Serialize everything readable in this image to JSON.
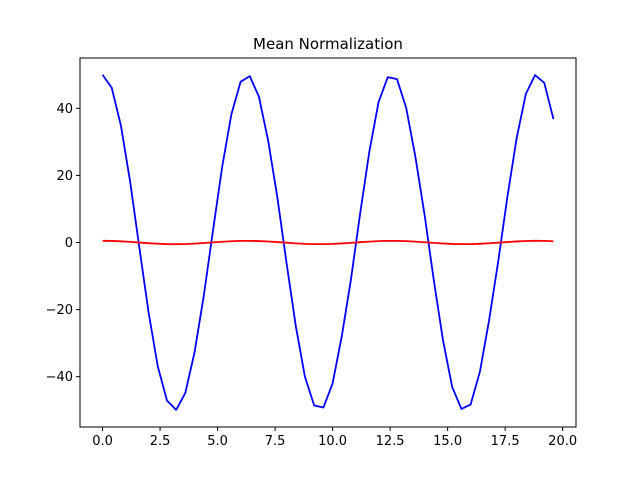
{
  "chart_data": {
    "type": "line",
    "title": "Mean Normalization",
    "xlabel": "",
    "ylabel": "",
    "xlim": [
      -0.98,
      20.58
    ],
    "ylim": [
      -55.0,
      55.0
    ],
    "xticks": [
      0.0,
      2.5,
      5.0,
      7.5,
      10.0,
      12.5,
      15.0,
      17.5,
      20.0
    ],
    "xtick_labels": [
      "0.0",
      "2.5",
      "5.0",
      "7.5",
      "10.0",
      "12.5",
      "15.0",
      "17.5",
      "20.0"
    ],
    "yticks": [
      -40,
      -20,
      0,
      20,
      40
    ],
    "ytick_labels": [
      "−40",
      "−20",
      "0",
      "20",
      "40"
    ],
    "grid": false,
    "legend": "none",
    "x": [
      0.0,
      0.4,
      0.8,
      1.2,
      1.6,
      2.0,
      2.4,
      2.8,
      3.2,
      3.6,
      4.0,
      4.4,
      4.8,
      5.2,
      5.6,
      6.0,
      6.4,
      6.8,
      7.2,
      7.6,
      8.0,
      8.4,
      8.8,
      9.2,
      9.6,
      10.0,
      10.4,
      10.8,
      11.2,
      11.6,
      12.0,
      12.4,
      12.8,
      13.2,
      13.6,
      14.0,
      14.4,
      14.8,
      15.2,
      15.6,
      16.0,
      16.4,
      16.8,
      17.2,
      17.6,
      18.0,
      18.4,
      18.8,
      19.2,
      19.6
    ],
    "series": [
      {
        "color": "#0000ff",
        "values": [
          50.0,
          46.1,
          34.8,
          18.1,
          -1.5,
          -20.8,
          -36.9,
          -47.1,
          -49.9,
          -44.8,
          -32.7,
          -15.9,
          3.5,
          22.5,
          38.2,
          47.9,
          49.6,
          43.4,
          30.3,
          13.4,
          -6.2,
          -24.9,
          -40.1,
          -48.6,
          -49.2,
          -42.0,
          -27.9,
          -10.9,
          8.8,
          27.2,
          41.9,
          49.3,
          48.7,
          40.1,
          25.5,
          8.2,
          -11.3,
          -29.2,
          -43.1,
          -49.6,
          -48.3,
          -38.6,
          -23.3,
          -5.6,
          13.7,
          31.1,
          44.3,
          49.9,
          47.6,
          36.8
        ]
      },
      {
        "color": "#ff0000",
        "values": [
          0.5,
          0.461,
          0.348,
          0.181,
          -0.015,
          -0.208,
          -0.369,
          -0.471,
          -0.499,
          -0.448,
          -0.327,
          -0.159,
          0.035,
          0.225,
          0.382,
          0.479,
          0.496,
          0.434,
          0.303,
          0.134,
          -0.062,
          -0.249,
          -0.401,
          -0.486,
          -0.492,
          -0.42,
          -0.279,
          -0.109,
          0.088,
          0.272,
          0.419,
          0.493,
          0.487,
          0.401,
          0.255,
          0.082,
          -0.113,
          -0.292,
          -0.431,
          -0.496,
          -0.483,
          -0.386,
          -0.233,
          -0.056,
          0.137,
          0.311,
          0.443,
          0.499,
          0.476,
          0.368
        ]
      }
    ]
  }
}
